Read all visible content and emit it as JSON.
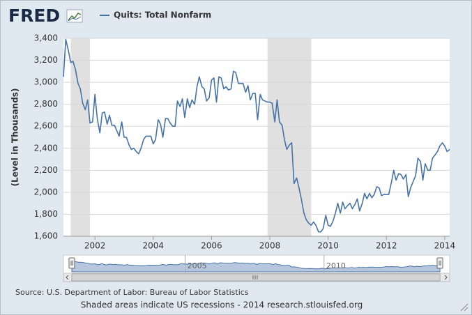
{
  "chart_data": {
    "type": "line",
    "logo": "FRED",
    "ylabel": "(Level in Thousands)",
    "source": "Source: U.S. Department of Labor: Bureau of Labor Statistics",
    "note": "Shaded areas indicate US recessions - 2014 research.stlouisfed.org",
    "xlim": [
      2000.92,
      2014.17
    ],
    "xticks": [
      2002,
      2004,
      2006,
      2008,
      2010,
      2012,
      2014
    ],
    "ylim": [
      1600,
      3400
    ],
    "yticks": [
      {
        "value": 1600,
        "label": "1,600"
      },
      {
        "value": 1800,
        "label": "1,800"
      },
      {
        "value": 2000,
        "label": "2,000"
      },
      {
        "value": 2200,
        "label": "2,200"
      },
      {
        "value": 2400,
        "label": "2,400"
      },
      {
        "value": 2600,
        "label": "2,600"
      },
      {
        "value": 2800,
        "label": "2,800"
      },
      {
        "value": 3000,
        "label": "3,000"
      },
      {
        "value": 3200,
        "label": "3,200"
      },
      {
        "value": 3400,
        "label": "3,400"
      }
    ],
    "grid": true,
    "recessions": [
      [
        2001.17,
        2001.83
      ],
      [
        2007.92,
        2009.42
      ]
    ],
    "navigator_xticks": [
      2005,
      2010
    ],
    "x": [
      2000.92,
      2001,
      2001.08,
      2001.17,
      2001.25,
      2001.33,
      2001.42,
      2001.5,
      2001.58,
      2001.67,
      2001.75,
      2001.83,
      2001.92,
      2002,
      2002.08,
      2002.17,
      2002.25,
      2002.33,
      2002.42,
      2002.5,
      2002.58,
      2002.67,
      2002.75,
      2002.83,
      2002.92,
      2003,
      2003.08,
      2003.17,
      2003.25,
      2003.33,
      2003.42,
      2003.5,
      2003.58,
      2003.67,
      2003.75,
      2003.83,
      2003.92,
      2004,
      2004.08,
      2004.17,
      2004.25,
      2004.33,
      2004.42,
      2004.5,
      2004.58,
      2004.67,
      2004.75,
      2004.83,
      2004.92,
      2005,
      2005.08,
      2005.17,
      2005.25,
      2005.33,
      2005.42,
      2005.5,
      2005.58,
      2005.67,
      2005.75,
      2005.83,
      2005.92,
      2006,
      2006.08,
      2006.17,
      2006.25,
      2006.33,
      2006.42,
      2006.5,
      2006.58,
      2006.67,
      2006.75,
      2006.83,
      2006.92,
      2007,
      2007.08,
      2007.17,
      2007.25,
      2007.33,
      2007.42,
      2007.5,
      2007.58,
      2007.67,
      2007.75,
      2007.83,
      2007.92,
      2008,
      2008.08,
      2008.17,
      2008.25,
      2008.33,
      2008.42,
      2008.5,
      2008.58,
      2008.67,
      2008.75,
      2008.83,
      2008.92,
      2009,
      2009.08,
      2009.17,
      2009.25,
      2009.33,
      2009.42,
      2009.5,
      2009.58,
      2009.67,
      2009.75,
      2009.83,
      2009.92,
      2010,
      2010.08,
      2010.17,
      2010.25,
      2010.33,
      2010.42,
      2010.5,
      2010.58,
      2010.67,
      2010.75,
      2010.83,
      2010.92,
      2011,
      2011.08,
      2011.17,
      2011.25,
      2011.33,
      2011.42,
      2011.5,
      2011.58,
      2011.67,
      2011.75,
      2011.83,
      2011.92,
      2012,
      2012.08,
      2012.17,
      2012.25,
      2012.33,
      2012.42,
      2012.5,
      2012.58,
      2012.67,
      2012.75,
      2012.83,
      2012.92,
      2013,
      2013.08,
      2013.17,
      2013.25,
      2013.33,
      2013.42,
      2013.5,
      2013.58,
      2013.67,
      2013.75,
      2013.83,
      2013.92,
      2014,
      2014.08,
      2014.17
    ],
    "series": [
      {
        "name": "Quits: Total Nonfarm",
        "color": "#4572a7",
        "values": [
          3050,
          3390,
          3300,
          3180,
          3190,
          3120,
          2990,
          2940,
          2810,
          2750,
          2840,
          2630,
          2640,
          2890,
          2670,
          2540,
          2720,
          2730,
          2620,
          2700,
          2610,
          2610,
          2560,
          2510,
          2640,
          2500,
          2500,
          2430,
          2390,
          2400,
          2370,
          2350,
          2400,
          2480,
          2510,
          2510,
          2510,
          2440,
          2480,
          2660,
          2620,
          2500,
          2670,
          2670,
          2630,
          2600,
          2600,
          2830,
          2780,
          2850,
          2680,
          2850,
          2770,
          2840,
          2800,
          2960,
          3050,
          2960,
          2940,
          2830,
          2860,
          3020,
          3040,
          2820,
          3050,
          3040,
          2940,
          2960,
          2930,
          2940,
          3100,
          3090,
          2990,
          2990,
          2990,
          2910,
          2970,
          2840,
          2900,
          2900,
          2660,
          2890,
          2840,
          2830,
          2820,
          2820,
          2810,
          2640,
          2840,
          2640,
          2610,
          2480,
          2390,
          2430,
          2450,
          2080,
          2130,
          2040,
          1940,
          1810,
          1750,
          1720,
          1700,
          1730,
          1700,
          1640,
          1640,
          1670,
          1790,
          1700,
          1690,
          1740,
          1810,
          1900,
          1810,
          1910,
          1850,
          1880,
          1900,
          1850,
          1890,
          1940,
          1830,
          1900,
          1990,
          1940,
          1990,
          1950,
          1980,
          2050,
          2040,
          1970,
          1980,
          1980,
          1980,
          2090,
          2200,
          2110,
          2170,
          2160,
          2120,
          2160,
          1960,
          2040,
          2100,
          2150,
          2310,
          2280,
          2110,
          2260,
          2200,
          2200,
          2310,
          2340,
          2370,
          2420,
          2450,
          2420,
          2370,
          2390
        ]
      }
    ]
  }
}
